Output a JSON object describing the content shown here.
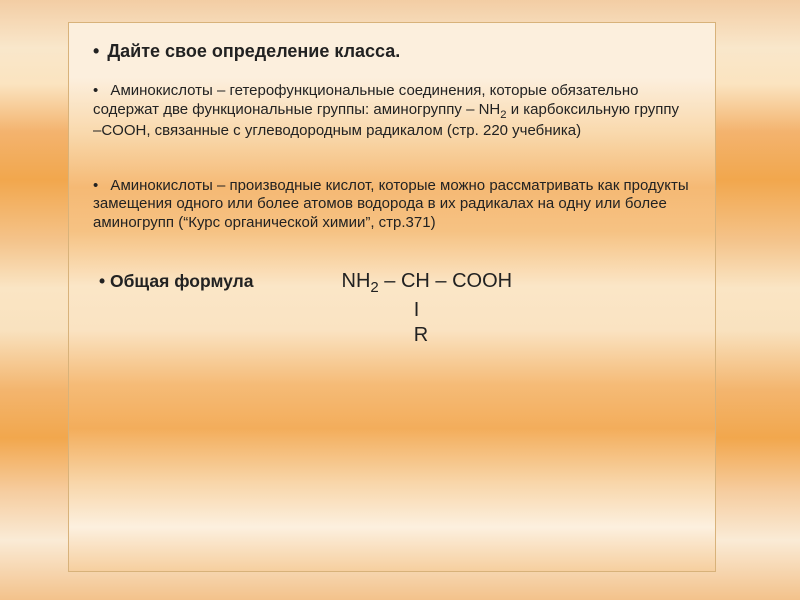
{
  "heading": {
    "bullet": "•",
    "text": "Дайте   свое определение  класса."
  },
  "para1": {
    "bullet": "•",
    "text_a": "  Аминокислоты – гетерофункциональные соединения, которые обязательно содержат две функциональные группы: аминогруппу – NH",
    "sub1": "2",
    "text_b": " и карбоксильную группу –COOH, связанные с углеводородным радикалом (стр. 220 учебника)"
  },
  "para2": {
    "bullet": "•",
    "text": "  Аминокислоты – производные кислот, которые можно рассматривать как продукты замещения одного или более атомов водорода в их радикалах на одну или более аминогрупп (“Курс органической химии”, стр.371)"
  },
  "formula": {
    "label_bullet": "•",
    "label": " Общая формула",
    "line1_a": "NH",
    "line1_sub": "2",
    "line1_b": " – CH – COOH",
    "line2": "             I",
    "line3": "             R"
  }
}
